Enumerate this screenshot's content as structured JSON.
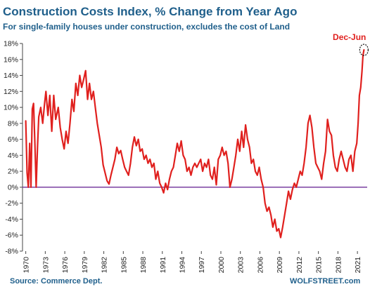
{
  "chart_data": {
    "type": "line",
    "title": "Construction  Costs Index, % Change from Year Ago",
    "subtitle": "For single-family houses under construction, excludes the cost of Land",
    "xlabel": "",
    "ylabel": "",
    "x_tick_labels": [
      "1970",
      "1973",
      "1976",
      "1979",
      "1982",
      "1985",
      "1988",
      "1991",
      "1994",
      "1997",
      "2000",
      "2003",
      "2006",
      "2009",
      "2012",
      "2015",
      "2018",
      "2021"
    ],
    "y_tick_labels": [
      "18%",
      "16%",
      "14%",
      "12%",
      "10%",
      "8%",
      "6%",
      "4%",
      "2%",
      "0%",
      "-2%",
      "-4%",
      "-6%",
      "-8%"
    ],
    "ylim": [
      -8,
      18
    ],
    "xlim": [
      1969.5,
      2022.5
    ],
    "grid": false,
    "zero_line_color": "#7a3fa0",
    "line_color": "#e0201e",
    "series": [
      {
        "points": [
          [
            1970.0,
            8.3
          ],
          [
            1970.2,
            1.8
          ],
          [
            1970.4,
            0.0
          ],
          [
            1970.6,
            5.5
          ],
          [
            1970.8,
            0.0
          ],
          [
            1971.0,
            9.8
          ],
          [
            1971.2,
            10.5
          ],
          [
            1971.4,
            5.5
          ],
          [
            1971.6,
            0.0
          ],
          [
            1971.8,
            5.0
          ],
          [
            1972.0,
            8.8
          ],
          [
            1972.3,
            10.0
          ],
          [
            1972.6,
            8.0
          ],
          [
            1972.9,
            10.5
          ],
          [
            1973.1,
            12.0
          ],
          [
            1973.4,
            9.0
          ],
          [
            1973.7,
            11.5
          ],
          [
            1974.0,
            7.0
          ],
          [
            1974.3,
            11.5
          ],
          [
            1974.6,
            8.5
          ],
          [
            1975.0,
            10.0
          ],
          [
            1975.3,
            7.5
          ],
          [
            1975.6,
            6.0
          ],
          [
            1975.9,
            4.8
          ],
          [
            1976.2,
            7.0
          ],
          [
            1976.5,
            5.5
          ],
          [
            1976.8,
            8.0
          ],
          [
            1977.1,
            11.0
          ],
          [
            1977.4,
            9.5
          ],
          [
            1977.7,
            13.0
          ],
          [
            1978.0,
            11.5
          ],
          [
            1978.3,
            14.0
          ],
          [
            1978.6,
            12.5
          ],
          [
            1978.9,
            13.5
          ],
          [
            1979.2,
            14.6
          ],
          [
            1979.5,
            11.0
          ],
          [
            1979.8,
            13.0
          ],
          [
            1980.1,
            11.0
          ],
          [
            1980.4,
            12.0
          ],
          [
            1980.7,
            10.0
          ],
          [
            1981.0,
            8.0
          ],
          [
            1981.3,
            6.5
          ],
          [
            1981.6,
            5.0
          ],
          [
            1981.9,
            2.8
          ],
          [
            1982.2,
            1.8
          ],
          [
            1982.5,
            0.8
          ],
          [
            1982.8,
            0.4
          ],
          [
            1983.1,
            1.5
          ],
          [
            1983.4,
            2.5
          ],
          [
            1983.7,
            3.5
          ],
          [
            1984.0,
            5.0
          ],
          [
            1984.3,
            4.2
          ],
          [
            1984.6,
            4.6
          ],
          [
            1984.9,
            3.5
          ],
          [
            1985.2,
            2.5
          ],
          [
            1985.5,
            2.0
          ],
          [
            1985.8,
            1.5
          ],
          [
            1986.1,
            3.0
          ],
          [
            1986.4,
            5.0
          ],
          [
            1986.7,
            6.3
          ],
          [
            1987.0,
            5.2
          ],
          [
            1987.3,
            6.0
          ],
          [
            1987.6,
            4.5
          ],
          [
            1987.9,
            4.8
          ],
          [
            1988.2,
            3.5
          ],
          [
            1988.5,
            4.0
          ],
          [
            1988.8,
            3.0
          ],
          [
            1989.1,
            3.5
          ],
          [
            1989.4,
            2.5
          ],
          [
            1989.7,
            3.0
          ],
          [
            1990.0,
            1.0
          ],
          [
            1990.3,
            2.0
          ],
          [
            1990.6,
            0.5
          ],
          [
            1990.9,
            0.0
          ],
          [
            1991.2,
            -0.7
          ],
          [
            1991.5,
            0.5
          ],
          [
            1991.8,
            -0.3
          ],
          [
            1992.1,
            1.0
          ],
          [
            1992.4,
            2.0
          ],
          [
            1992.7,
            2.5
          ],
          [
            1993.0,
            4.0
          ],
          [
            1993.3,
            5.5
          ],
          [
            1993.6,
            4.5
          ],
          [
            1993.9,
            5.8
          ],
          [
            1994.2,
            4.0
          ],
          [
            1994.5,
            3.5
          ],
          [
            1994.8,
            2.0
          ],
          [
            1995.1,
            2.5
          ],
          [
            1995.4,
            1.5
          ],
          [
            1995.7,
            2.5
          ],
          [
            1996.0,
            3.0
          ],
          [
            1996.3,
            2.5
          ],
          [
            1996.6,
            3.0
          ],
          [
            1996.9,
            3.5
          ],
          [
            1997.2,
            2.0
          ],
          [
            1997.5,
            3.0
          ],
          [
            1997.8,
            2.5
          ],
          [
            1998.1,
            3.5
          ],
          [
            1998.4,
            1.5
          ],
          [
            1998.7,
            1.0
          ],
          [
            1999.0,
            2.5
          ],
          [
            1999.3,
            0.3
          ],
          [
            1999.6,
            3.5
          ],
          [
            1999.9,
            4.0
          ],
          [
            2000.2,
            5.0
          ],
          [
            2000.5,
            4.0
          ],
          [
            2000.8,
            4.5
          ],
          [
            2001.1,
            3.0
          ],
          [
            2001.4,
            0.0
          ],
          [
            2001.7,
            1.0
          ],
          [
            2002.0,
            2.5
          ],
          [
            2002.3,
            4.0
          ],
          [
            2002.6,
            6.0
          ],
          [
            2002.9,
            4.5
          ],
          [
            2003.2,
            7.0
          ],
          [
            2003.5,
            5.0
          ],
          [
            2003.8,
            7.8
          ],
          [
            2004.1,
            6.0
          ],
          [
            2004.4,
            5.0
          ],
          [
            2004.7,
            3.0
          ],
          [
            2005.0,
            3.5
          ],
          [
            2005.3,
            2.0
          ],
          [
            2005.6,
            1.5
          ],
          [
            2005.9,
            2.5
          ],
          [
            2006.2,
            1.0
          ],
          [
            2006.5,
            0.0
          ],
          [
            2006.8,
            -2.0
          ],
          [
            2007.1,
            -3.0
          ],
          [
            2007.4,
            -2.5
          ],
          [
            2007.7,
            -3.5
          ],
          [
            2008.0,
            -5.0
          ],
          [
            2008.3,
            -4.0
          ],
          [
            2008.6,
            -5.5
          ],
          [
            2008.9,
            -5.2
          ],
          [
            2009.2,
            -6.3
          ],
          [
            2009.5,
            -5.0
          ],
          [
            2009.8,
            -3.5
          ],
          [
            2010.1,
            -2.0
          ],
          [
            2010.4,
            -0.5
          ],
          [
            2010.7,
            -1.5
          ],
          [
            2011.0,
            -0.3
          ],
          [
            2011.3,
            0.5
          ],
          [
            2011.6,
            0.0
          ],
          [
            2011.9,
            1.0
          ],
          [
            2012.2,
            2.0
          ],
          [
            2012.5,
            1.5
          ],
          [
            2012.8,
            3.0
          ],
          [
            2013.1,
            5.0
          ],
          [
            2013.4,
            8.0
          ],
          [
            2013.7,
            9.0
          ],
          [
            2014.0,
            7.5
          ],
          [
            2014.3,
            5.0
          ],
          [
            2014.6,
            3.0
          ],
          [
            2014.9,
            2.5
          ],
          [
            2015.2,
            2.0
          ],
          [
            2015.5,
            1.0
          ],
          [
            2015.8,
            3.0
          ],
          [
            2016.1,
            4.5
          ],
          [
            2016.4,
            8.5
          ],
          [
            2016.7,
            7.0
          ],
          [
            2017.0,
            6.5
          ],
          [
            2017.3,
            4.0
          ],
          [
            2017.6,
            2.5
          ],
          [
            2017.9,
            2.0
          ],
          [
            2018.2,
            3.5
          ],
          [
            2018.5,
            4.5
          ],
          [
            2018.8,
            3.5
          ],
          [
            2019.1,
            2.5
          ],
          [
            2019.4,
            2.0
          ],
          [
            2019.7,
            3.5
          ],
          [
            2020.0,
            4.0
          ],
          [
            2020.3,
            2.0
          ],
          [
            2020.6,
            4.5
          ],
          [
            2020.9,
            5.5
          ],
          [
            2021.1,
            8.0
          ],
          [
            2021.3,
            11.5
          ],
          [
            2021.5,
            12.5
          ],
          [
            2021.7,
            14.5
          ],
          [
            2021.85,
            16.5
          ],
          [
            2022.0,
            17.2
          ]
        ]
      }
    ],
    "annotation": {
      "text": "Dec-Jun",
      "at": [
        2022.0,
        17.2
      ]
    },
    "source": "Source: Commerce Dept.",
    "watermark": "WOLFSTREET.com"
  }
}
